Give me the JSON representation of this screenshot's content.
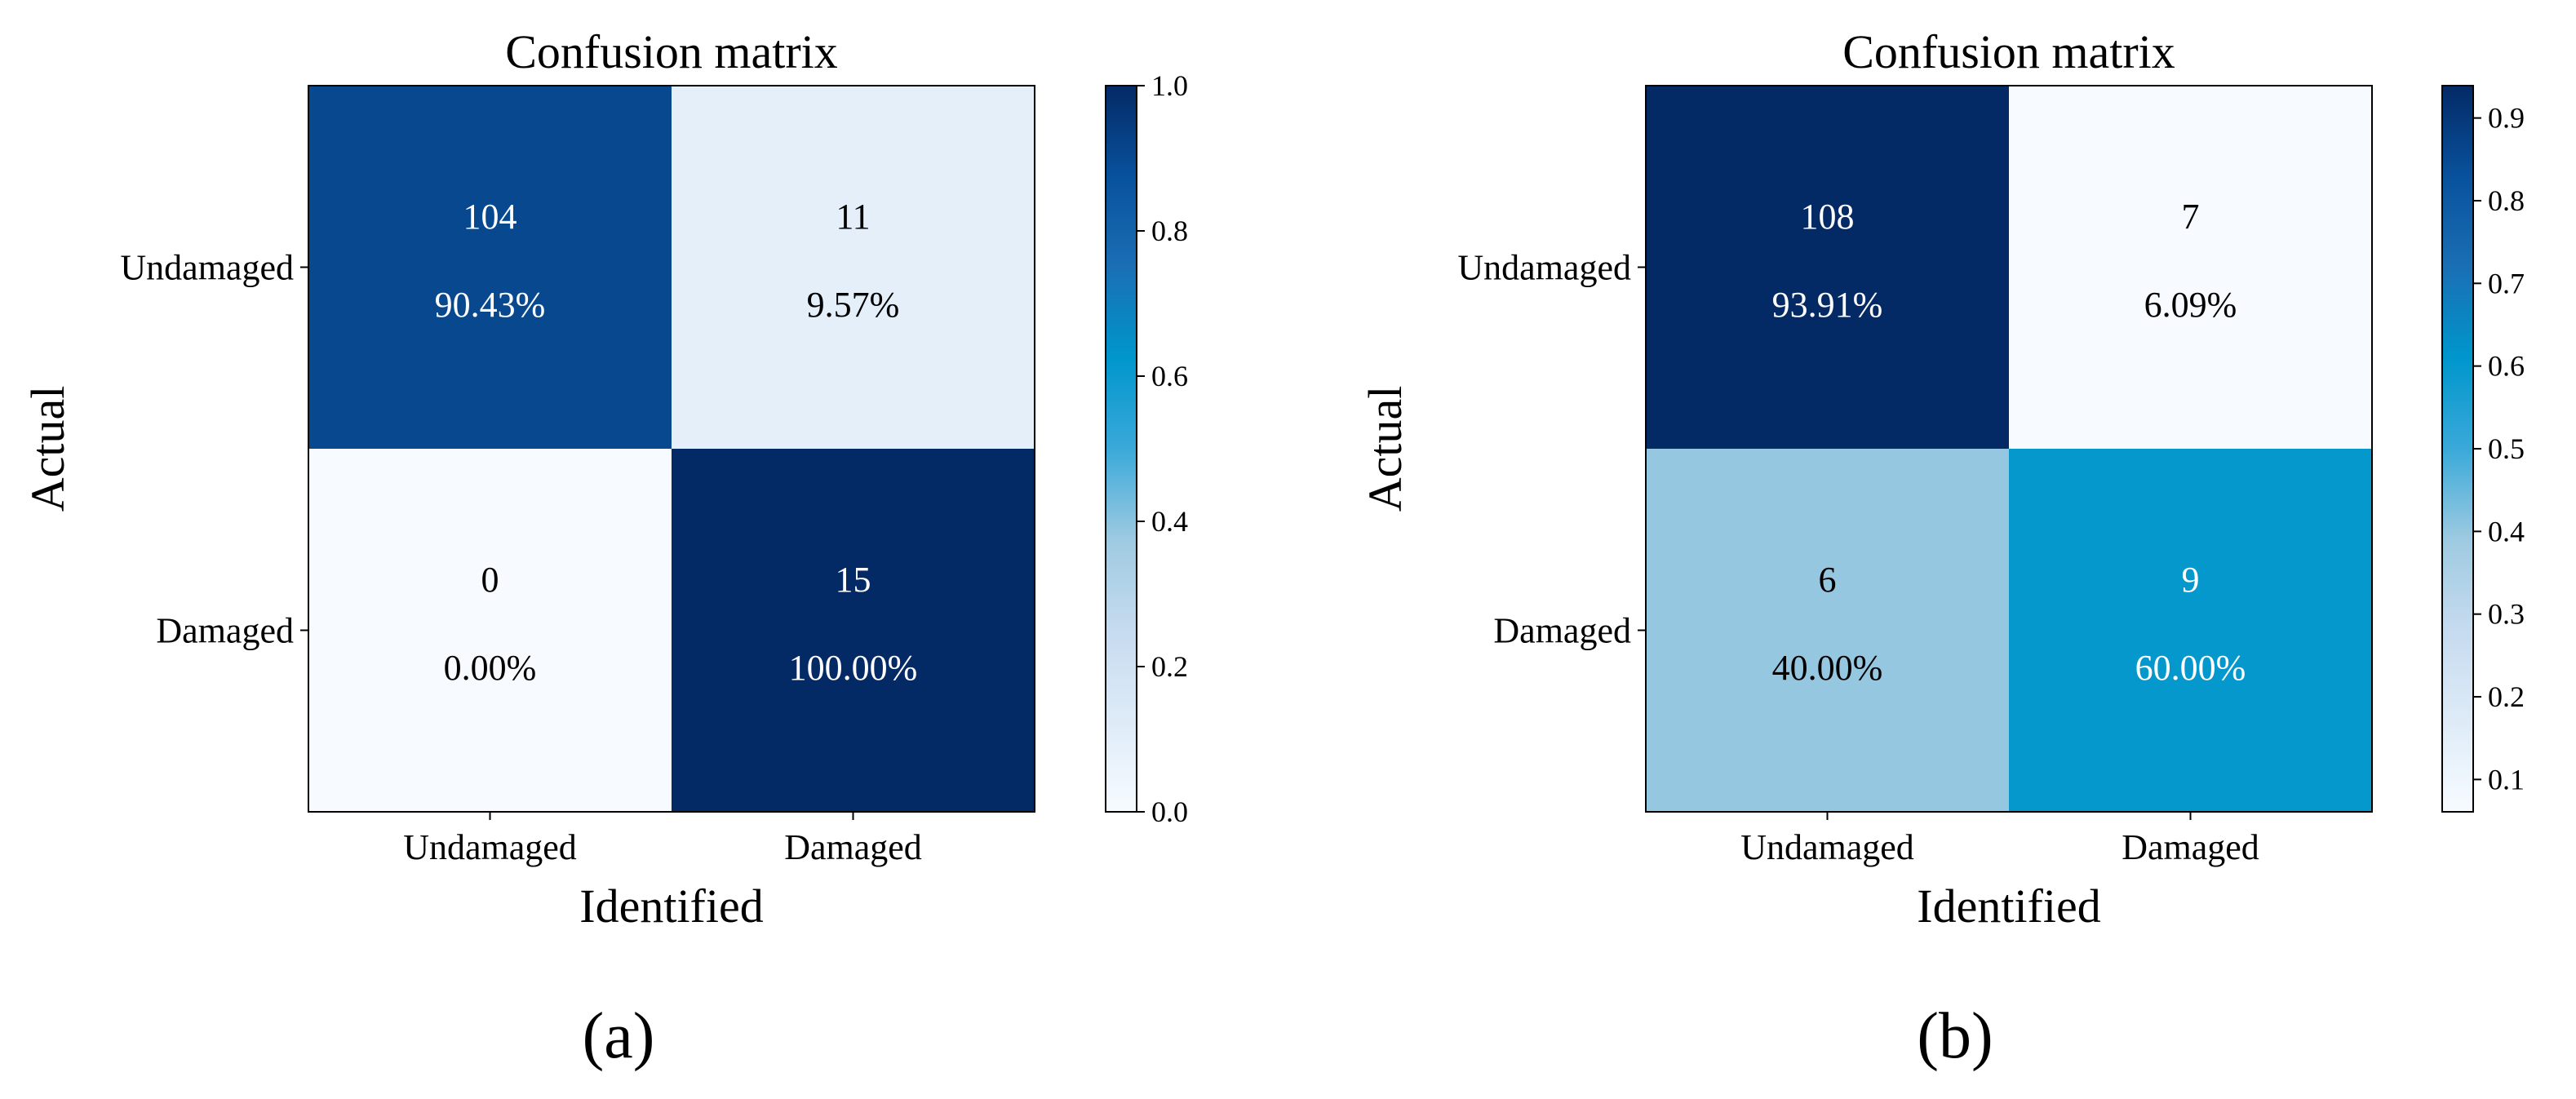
{
  "chart_data": [
    {
      "type": "heatmap",
      "panel_label": "(a)",
      "title": "Confusion matrix",
      "xlabel": "Identified",
      "ylabel": "Actual",
      "row_labels": [
        "Undamaged",
        "Damaged"
      ],
      "col_labels": [
        "Undamaged",
        "Damaged"
      ],
      "counts": [
        [
          104,
          11
        ],
        [
          0,
          15
        ]
      ],
      "percent_labels": [
        [
          "90.43%",
          "9.57%"
        ],
        [
          "0.00%",
          "100.00%"
        ]
      ],
      "values": [
        [
          0.9043,
          0.0957
        ],
        [
          0.0,
          1.0
        ]
      ],
      "colorbar": {
        "min": 0.0,
        "max": 1.0,
        "ticks": [
          "0.0",
          "0.2",
          "0.4",
          "0.6",
          "0.8",
          "1.0"
        ]
      }
    },
    {
      "type": "heatmap",
      "panel_label": "(b)",
      "title": "Confusion matrix",
      "xlabel": "Identified",
      "ylabel": "Actual",
      "row_labels": [
        "Undamaged",
        "Damaged"
      ],
      "col_labels": [
        "Undamaged",
        "Damaged"
      ],
      "counts": [
        [
          108,
          7
        ],
        [
          6,
          9
        ]
      ],
      "percent_labels": [
        [
          "93.91%",
          "6.09%"
        ],
        [
          "40.00%",
          "60.00%"
        ]
      ],
      "values": [
        [
          0.9391,
          0.0609
        ],
        [
          0.4,
          0.6
        ]
      ],
      "colorbar": {
        "min": 0.0609,
        "max": 0.9391,
        "ticks": [
          "0.1",
          "0.2",
          "0.3",
          "0.4",
          "0.5",
          "0.6",
          "0.7",
          "0.8",
          "0.9"
        ]
      }
    }
  ]
}
